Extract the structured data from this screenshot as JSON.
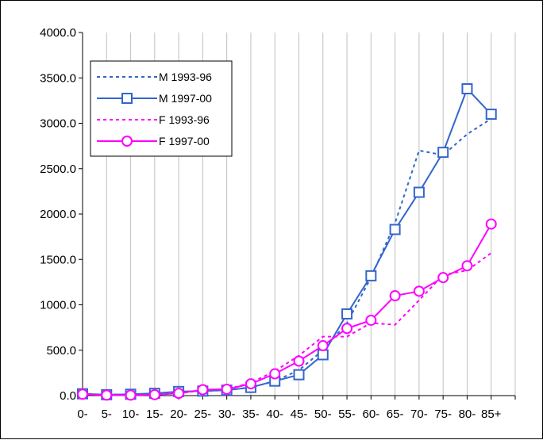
{
  "chart_data": {
    "type": "line",
    "title": "",
    "xlabel": "",
    "ylabel": "",
    "categories": [
      "0-",
      "5-",
      "10-",
      "15-",
      "20-",
      "25-",
      "30-",
      "35-",
      "40-",
      "45-",
      "50-",
      "55-",
      "60-",
      "65-",
      "70-",
      "75-",
      "80-",
      "85+"
    ],
    "y_ticks": [
      "0.0",
      "500.0",
      "1000.0",
      "1500.0",
      "2000.0",
      "2500.0",
      "3000.0",
      "3500.0",
      "4000.0"
    ],
    "ylim": [
      0,
      4000
    ],
    "grid": "vertical",
    "legend_position": "top-left",
    "series": [
      {
        "name": "M 1993-96",
        "color": "#3366CC",
        "line_style": "dotted",
        "marker": "none",
        "values": [
          20,
          10,
          15,
          20,
          35,
          50,
          60,
          90,
          160,
          280,
          500,
          800,
          1300,
          1900,
          2700,
          2650,
          2880,
          3050
        ]
      },
      {
        "name": "M 1997-00",
        "color": "#3366CC",
        "line_style": "solid",
        "marker": "square",
        "values": [
          20,
          10,
          15,
          25,
          45,
          50,
          60,
          90,
          160,
          230,
          450,
          900,
          1320,
          1830,
          2240,
          2680,
          3380,
          3100
        ]
      },
      {
        "name": "F 1993-96",
        "color": "#FF00FF",
        "line_style": "dotted",
        "marker": "none",
        "values": [
          15,
          5,
          5,
          10,
          25,
          60,
          70,
          140,
          270,
          440,
          650,
          650,
          800,
          780,
          1050,
          1330,
          1380,
          1570
        ]
      },
      {
        "name": "F 1997-00",
        "color": "#FF00FF",
        "line_style": "solid",
        "marker": "circle",
        "values": [
          15,
          5,
          5,
          10,
          25,
          65,
          70,
          130,
          240,
          380,
          550,
          740,
          830,
          1100,
          1150,
          1300,
          1430,
          1890
        ]
      }
    ]
  }
}
